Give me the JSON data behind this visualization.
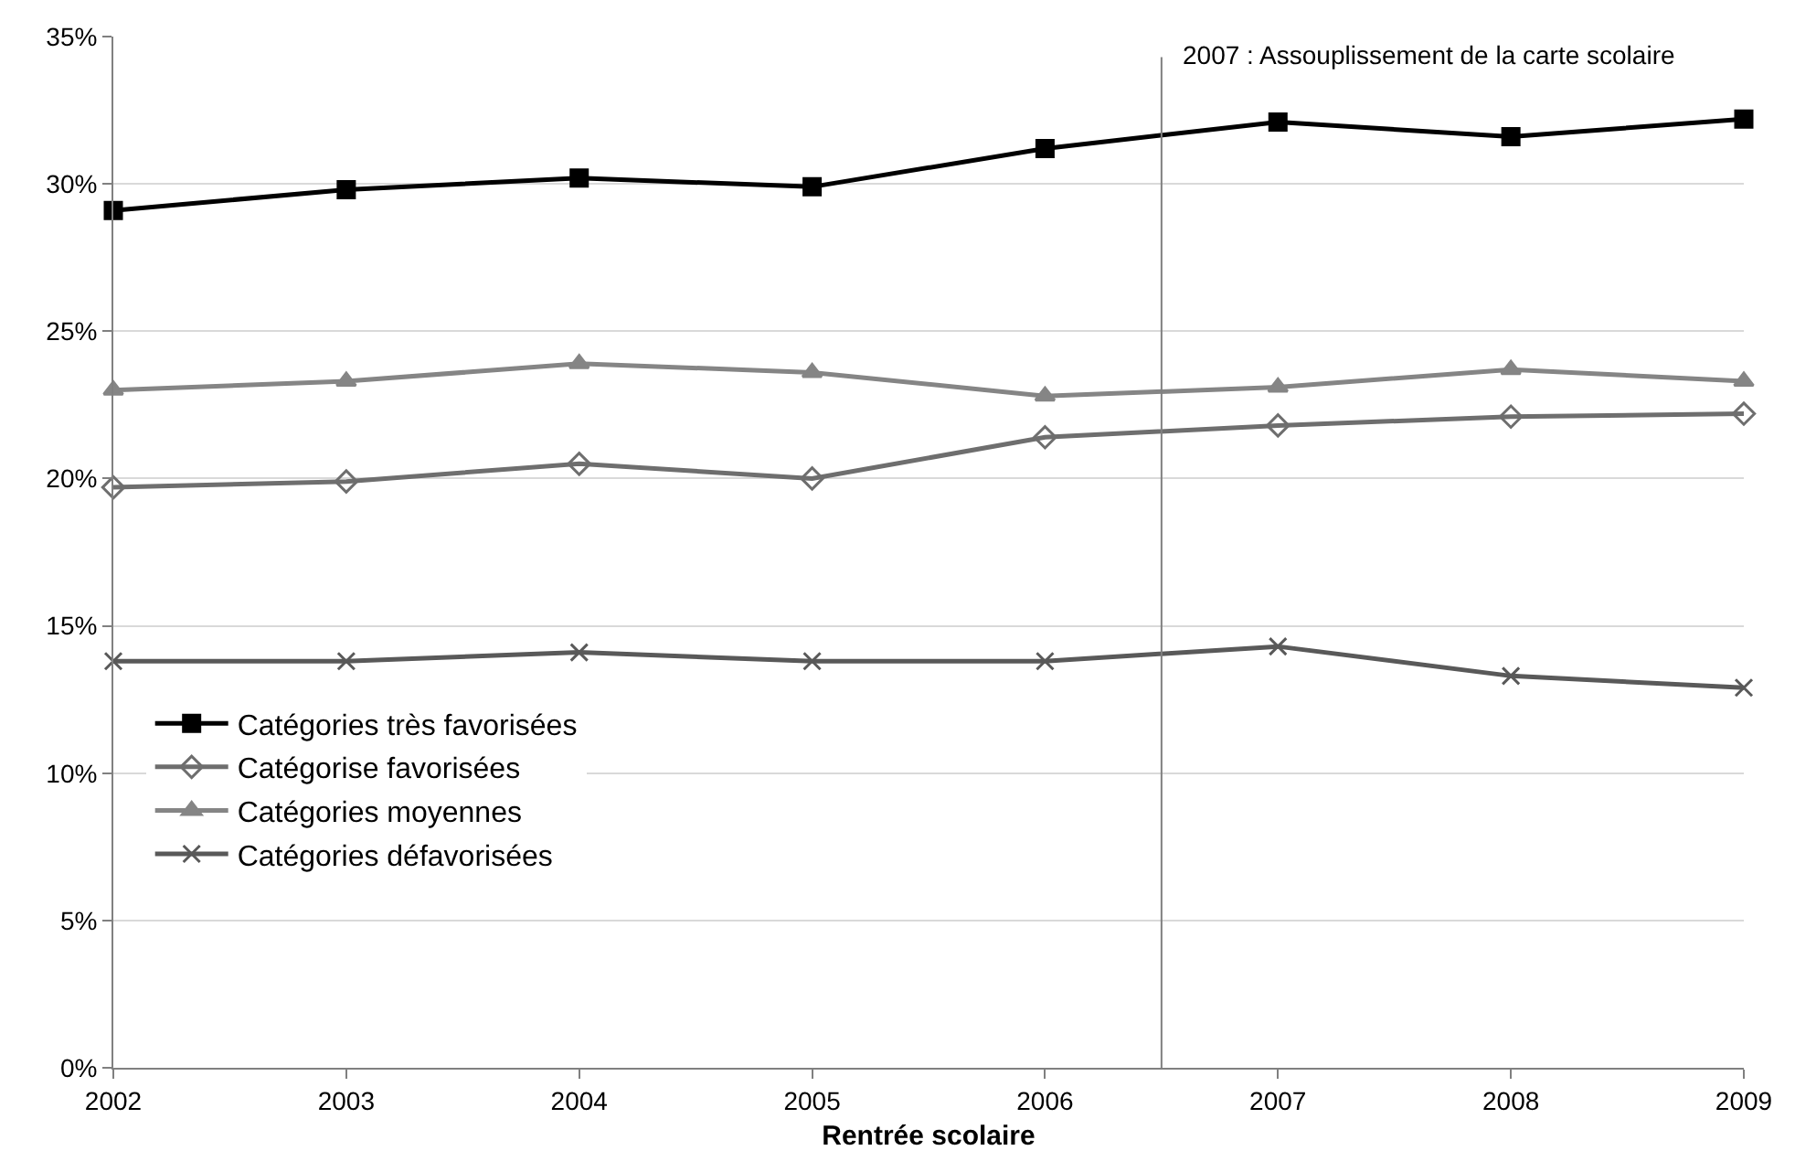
{
  "chart_data": {
    "type": "line",
    "xlabel": "Rentrée scolaire",
    "x": [
      2002,
      2003,
      2004,
      2005,
      2006,
      2007,
      2008,
      2009
    ],
    "xlim": [
      2002,
      2009
    ],
    "xticks": [
      2002,
      2003,
      2004,
      2005,
      2006,
      2007,
      2008,
      2009
    ],
    "ylim": [
      0,
      35
    ],
    "yticks": [
      {
        "value": 0,
        "label": "0%"
      },
      {
        "value": 5,
        "label": "5%"
      },
      {
        "value": 10,
        "label": "10%"
      },
      {
        "value": 15,
        "label": "15%"
      },
      {
        "value": 20,
        "label": "20%"
      },
      {
        "value": 25,
        "label": "25%"
      },
      {
        "value": 30,
        "label": "30%"
      },
      {
        "value": 35,
        "label": "35%"
      }
    ],
    "grid": "y",
    "legend": "left",
    "series": [
      {
        "name": "Catégories très favorisées",
        "color": "#000000",
        "marker": "square",
        "values": [
          29.1,
          29.8,
          30.2,
          29.9,
          31.2,
          32.1,
          31.6,
          32.2
        ]
      },
      {
        "name": "Catégorise favorisées",
        "color": "#6e6e6e",
        "marker": "diamond",
        "values": [
          19.7,
          19.9,
          20.5,
          20.0,
          21.4,
          21.8,
          22.1,
          22.2
        ]
      },
      {
        "name": "Catégories moyennes",
        "color": "#858585",
        "marker": "triangle",
        "values": [
          23.0,
          23.3,
          23.9,
          23.6,
          22.8,
          23.1,
          23.7,
          23.3
        ]
      },
      {
        "name": "Catégories défavorisées",
        "color": "#595959",
        "marker": "cross",
        "values": [
          13.8,
          13.8,
          14.1,
          13.8,
          13.8,
          14.3,
          13.3,
          12.9
        ]
      }
    ],
    "ref_lines": [
      {
        "axis": "x",
        "value": 2006.5,
        "label": "2007 : Assouplissement de la carte scolaire",
        "color": "#808080"
      }
    ]
  }
}
